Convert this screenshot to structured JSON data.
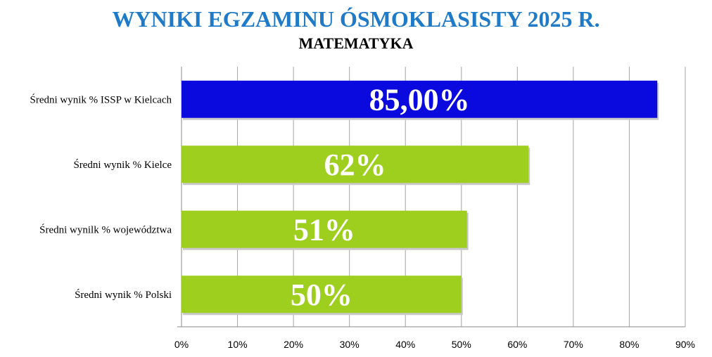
{
  "chart_data": {
    "type": "bar",
    "orientation": "horizontal",
    "title": "WYNIKI EGZAMINU ÓSMOKLASISTY 2025 R.",
    "subtitle": "MATEMATYKA",
    "categories": [
      "Średni wynik % ISSP w Kielcach",
      "Średni wynik % Kielce",
      "Średni wynilk % województwa",
      "Średni wynik % Polski"
    ],
    "values": [
      85,
      62,
      51,
      50
    ],
    "data_labels": [
      "85,00%",
      "62%",
      "51%",
      "50%"
    ],
    "bar_colors": [
      "#0a0adf",
      "#9fcf1e",
      "#9fcf1e",
      "#9fcf1e"
    ],
    "title_color": "#1f7ac8",
    "xlim": [
      0,
      90
    ],
    "xticks": [
      0,
      10,
      20,
      30,
      40,
      50,
      60,
      70,
      80,
      90
    ],
    "xtick_labels": [
      "0%",
      "10%",
      "20%",
      "30%",
      "40%",
      "50%",
      "60%",
      "70%",
      "80%",
      "90%"
    ],
    "grid": true,
    "legend": "none"
  }
}
